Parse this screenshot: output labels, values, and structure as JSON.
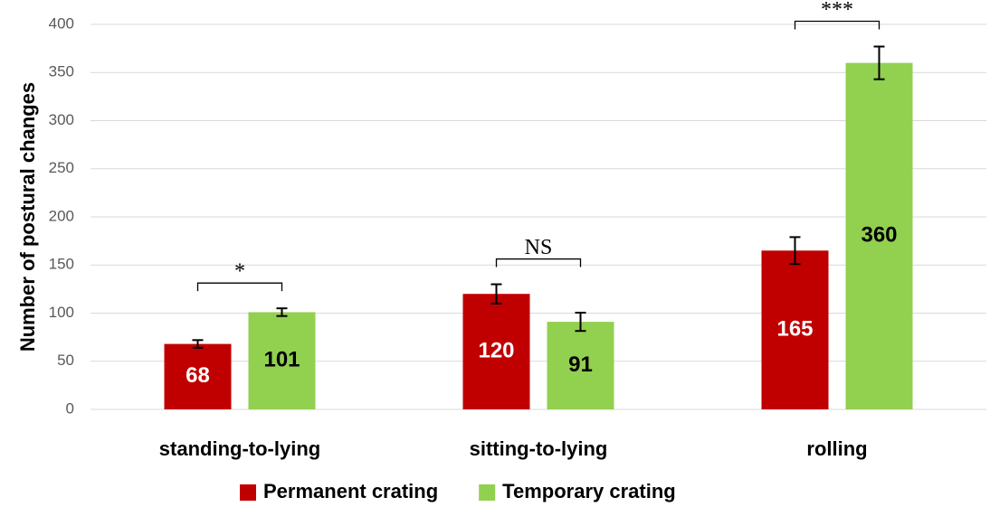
{
  "chart_data": {
    "type": "bar",
    "ylabel": "Number of postural changes",
    "categories": [
      "standing-to-lying",
      "sitting-to-lying",
      "rolling"
    ],
    "series": [
      {
        "name": "Permanent crating",
        "color": "#c00000",
        "label_color": "#ffffff",
        "values": [
          68,
          120,
          165
        ],
        "errors": [
          4,
          10,
          14
        ]
      },
      {
        "name": "Temporary crating",
        "color": "#92d050",
        "label_color": "#000000",
        "values": [
          101,
          91,
          360
        ],
        "errors": [
          4,
          9.5,
          17
        ]
      }
    ],
    "annotations": [
      {
        "category": 0,
        "text": "*"
      },
      {
        "category": 1,
        "text": "NS"
      },
      {
        "category": 2,
        "text": "***"
      }
    ],
    "ylim": [
      0,
      400
    ],
    "yticks": [
      0,
      50,
      100,
      150,
      200,
      250,
      300,
      350,
      400
    ],
    "grid": true,
    "legend": "bottom"
  }
}
